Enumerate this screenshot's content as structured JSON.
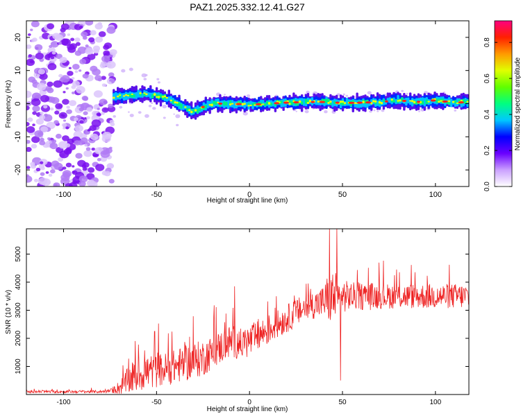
{
  "chart_data": [
    {
      "type": "heatmap",
      "title": "PAZ1.2025.332.12.41.G27",
      "xlabel": "Height of straight line (km)",
      "ylabel": "Frequency (Hz)",
      "xlim": [
        -120,
        118
      ],
      "ylim": [
        -25,
        25
      ],
      "xticks": [
        -100,
        -50,
        0,
        50,
        100
      ],
      "xtick_labels": [
        "-100",
        "-50",
        "0",
        "50",
        "100"
      ],
      "yticks": [
        -20,
        -10,
        0,
        10,
        20
      ],
      "ytick_labels": [
        "-20",
        "-10",
        "0",
        "10",
        "20"
      ],
      "noise_region_x": [
        -120,
        -73
      ],
      "signal_ridge": {
        "x": [
          -73,
          -65,
          -55,
          -45,
          -40,
          -35,
          -30,
          -25,
          -20,
          -10,
          0,
          10,
          20,
          30,
          40,
          50,
          60,
          70,
          80,
          90,
          100,
          110,
          118
        ],
        "freq": [
          2.0,
          2.5,
          3.0,
          1.8,
          0.5,
          -1.0,
          -2.5,
          -1.0,
          0.0,
          0.0,
          -0.3,
          0.0,
          0.3,
          0.5,
          0.5,
          0.2,
          0.3,
          0.5,
          1.0,
          0.5,
          1.0,
          0.3,
          0.5
        ]
      },
      "colorbar": {
        "label": "Normalized spectral amplitude",
        "ticks": [
          0.0,
          0.2,
          0.4,
          0.6,
          0.8
        ],
        "tick_labels": [
          "0.0",
          "0.2",
          "0.4",
          "0.6",
          "0.8"
        ],
        "range": [
          0,
          0.92
        ]
      }
    },
    {
      "type": "line",
      "title": "",
      "xlabel": "Height of straight line (km)",
      "ylabel": "SNR (10 * v/v)",
      "xlim": [
        -120,
        118
      ],
      "ylim": [
        0,
        5900
      ],
      "xticks": [
        -100,
        -50,
        0,
        50,
        100
      ],
      "xtick_labels": [
        "-100",
        "-50",
        "0",
        "50",
        "100"
      ],
      "yticks": [
        1000,
        2000,
        3000,
        4000,
        5000
      ],
      "ytick_labels": [
        "1000",
        "2000",
        "3000",
        "4000",
        "5000"
      ],
      "color": "#ee2222",
      "series": [
        {
          "name": "SNR",
          "x": [
            -120,
            -110,
            -100,
            -90,
            -80,
            -75,
            -70,
            -65,
            -60,
            -55,
            -50,
            -45,
            -40,
            -35,
            -30,
            -25,
            -20,
            -15,
            -10,
            -5,
            0,
            5,
            10,
            15,
            20,
            25,
            30,
            35,
            40,
            42,
            45,
            48,
            50,
            55,
            60,
            65,
            70,
            75,
            80,
            85,
            90,
            95,
            100,
            105,
            110,
            118
          ],
          "mean": [
            100,
            100,
            100,
            100,
            100,
            120,
            250,
            500,
            700,
            800,
            850,
            900,
            1000,
            1100,
            1200,
            1300,
            1500,
            1700,
            1900,
            1800,
            1900,
            2100,
            2300,
            2500,
            2700,
            2900,
            3100,
            3200,
            3300,
            3400,
            3500,
            3300,
            3500,
            3500,
            3500,
            3500,
            3500,
            3500,
            3500,
            3500,
            3500,
            3500,
            3500,
            3500,
            3500,
            3500
          ],
          "amp": [
            50,
            50,
            50,
            50,
            50,
            60,
            250,
            500,
            600,
            650,
            600,
            600,
            600,
            650,
            650,
            650,
            600,
            600,
            600,
            550,
            600,
            550,
            550,
            500,
            500,
            500,
            500,
            500,
            600,
            900,
            1000,
            900,
            600,
            500,
            500,
            500,
            450,
            450,
            450,
            450,
            450,
            450,
            450,
            450,
            450,
            450
          ]
        }
      ],
      "peaks": [
        {
          "x": -51,
          "y": 2250
        },
        {
          "x": -8,
          "y": 3850
        },
        {
          "x": 43,
          "y": 5900
        },
        {
          "x": 47,
          "y": 5900
        },
        {
          "x": 49,
          "y": 500
        }
      ]
    }
  ]
}
